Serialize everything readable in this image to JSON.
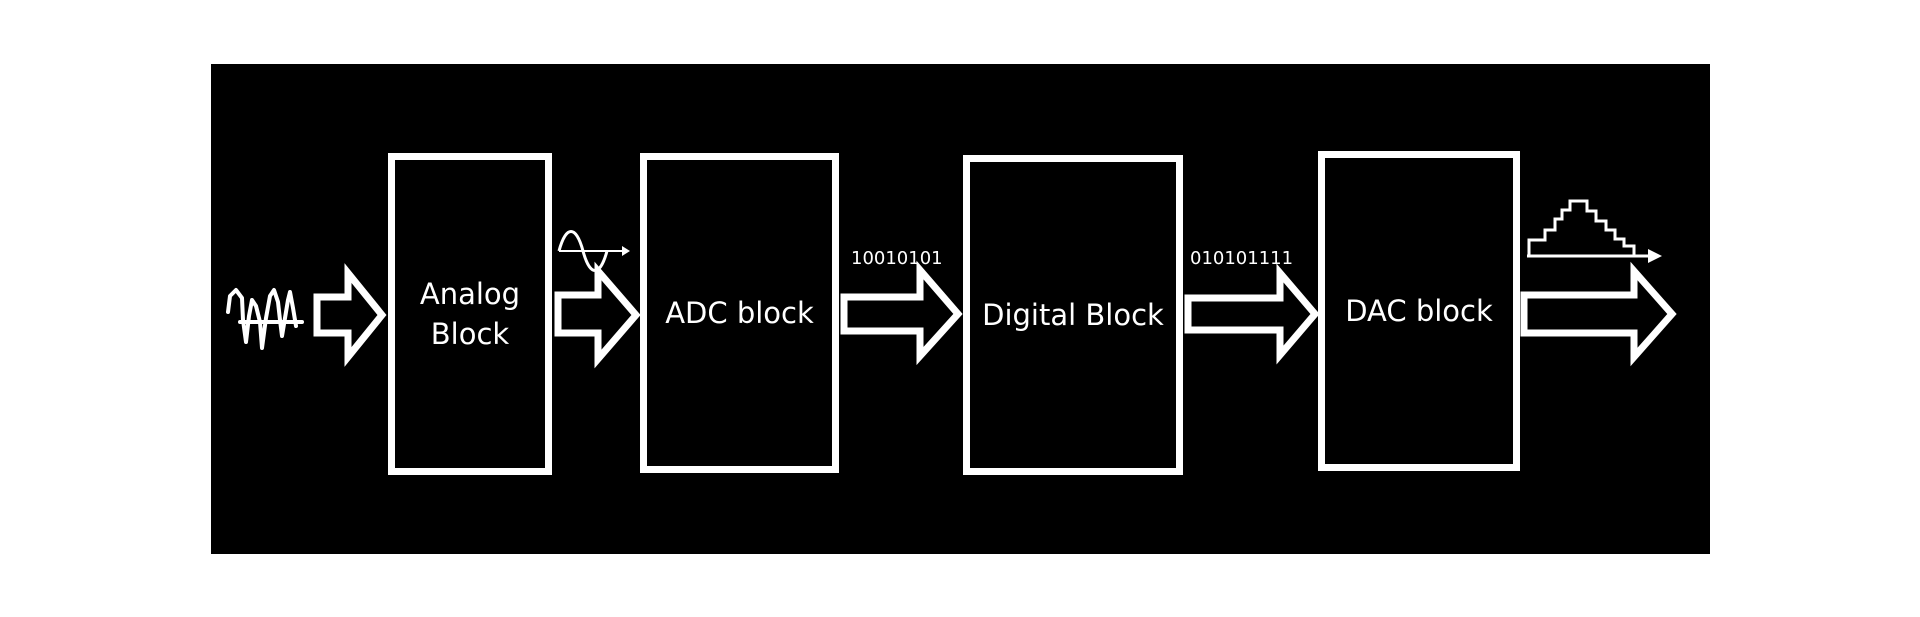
{
  "blocks": {
    "analog": "Analog\nBlock",
    "adc": "ADC block",
    "digital": "Digital Block",
    "dac": "DAC block"
  },
  "signals": {
    "adc_to_digital_bits": "10010101",
    "digital_to_dac_bits": "010101111"
  },
  "icons": {
    "input": "noisy-analog-signal-icon",
    "analog_out": "sine-wave-icon",
    "dac_out": "stepped-waveform-icon"
  },
  "colors": {
    "background": "#000000",
    "foreground": "#ffffff"
  }
}
